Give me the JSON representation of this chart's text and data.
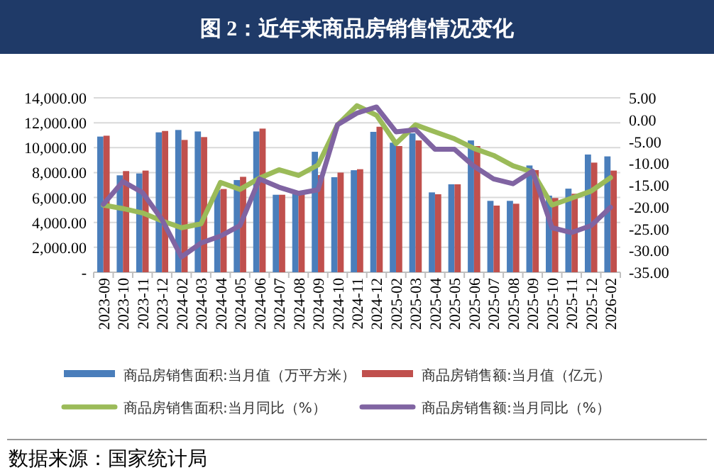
{
  "chart_data": {
    "type": "bar",
    "title": "图 2：近年来商品房销售情况变化",
    "categories": [
      "2023-09",
      "2023-10",
      "2023-11",
      "2023-12",
      "2024-02",
      "2024-03",
      "2024-04",
      "2024-05",
      "2024-06",
      "2024-07",
      "2024-08",
      "2024-09",
      "2024-10",
      "2024-11",
      "2024-12",
      "2025-02",
      "2025-03",
      "2025-04",
      "2025-05",
      "2025-06",
      "2025-07",
      "2025-08",
      "2025-09",
      "2025-10",
      "2025-11",
      "2025-12",
      "2026-02"
    ],
    "series": [
      {
        "name": "商品房销售面积:当月值（万平方米）",
        "color": "#4a7ebb",
        "values": [
          10890,
          7780,
          7930,
          11230,
          11420,
          11300,
          6600,
          7400,
          11300,
          6220,
          6300,
          9670,
          7630,
          8190,
          11270,
          10400,
          11150,
          6410,
          7060,
          10580,
          5730,
          5730,
          8570,
          6150,
          6710,
          9450,
          9300
        ]
      },
      {
        "name": "商品房销售额:当月值（亿元）",
        "color": "#c0504d",
        "values": [
          10960,
          8120,
          8160,
          11340,
          10620,
          10850,
          6680,
          7660,
          11530,
          6220,
          6250,
          7800,
          8000,
          8270,
          11680,
          10130,
          10580,
          6260,
          7060,
          10130,
          5350,
          5500,
          8200,
          5960,
          6300,
          8800,
          8160
        ]
      },
      {
        "name": "商品房销售面积:当月同比（%）",
        "type": "line",
        "axis": "y2",
        "color": "#9bbb59",
        "values": [
          -19.6,
          -20.4,
          -21.4,
          -23.2,
          -24.8,
          -23.9,
          -14.4,
          -16.0,
          -13.4,
          -11.5,
          -12.8,
          -10.4,
          -1.2,
          3.2,
          1.0,
          -5.5,
          -1.2,
          -2.8,
          -4.4,
          -6.6,
          -8.2,
          -10.6,
          -12.0,
          -19.6,
          -18.0,
          -16.4,
          -13.3
        ]
      },
      {
        "name": "商品房销售额:当月同比（%）",
        "type": "line",
        "axis": "y2",
        "color": "#8064a2",
        "values": [
          -19.4,
          -14.2,
          -16.7,
          -22.9,
          -31.5,
          -28.3,
          -26.7,
          -24.3,
          -13.6,
          -15.5,
          -16.9,
          -16.1,
          -1.2,
          1.5,
          2.9,
          -2.8,
          -2.3,
          -6.8,
          -6.8,
          -10.7,
          -13.6,
          -14.7,
          -11.8,
          -24.8,
          -25.9,
          -24.3,
          -20.1
        ]
      }
    ],
    "ylim": [
      0,
      14000
    ],
    "yticks": [
      {
        "value": 0,
        "label": "-"
      },
      {
        "value": 2000,
        "label": "2,000.00"
      },
      {
        "value": 4000,
        "label": "4,000.00"
      },
      {
        "value": 6000,
        "label": "6,000.00"
      },
      {
        "value": 8000,
        "label": "8,000.00"
      },
      {
        "value": 10000,
        "label": "10,000.00"
      },
      {
        "value": 12000,
        "label": "12,000.00"
      },
      {
        "value": 14000,
        "label": "14,000.00"
      }
    ],
    "y2lim": [
      -35,
      5
    ],
    "y2ticks": [
      {
        "value": 5,
        "label": "5.00"
      },
      {
        "value": 0,
        "label": "0.00"
      },
      {
        "value": -5,
        "label": "-5.00"
      },
      {
        "value": -10,
        "label": "-10.00"
      },
      {
        "value": -15,
        "label": "-15.00"
      },
      {
        "value": -20,
        "label": "-20.00"
      },
      {
        "value": -25,
        "label": "-25.00"
      },
      {
        "value": -30,
        "label": "-30.00"
      },
      {
        "value": -35,
        "label": "-35.00"
      }
    ],
    "grid": "y",
    "legend": "bottom",
    "annotations": [
      "数据来源：国家统计局"
    ]
  }
}
